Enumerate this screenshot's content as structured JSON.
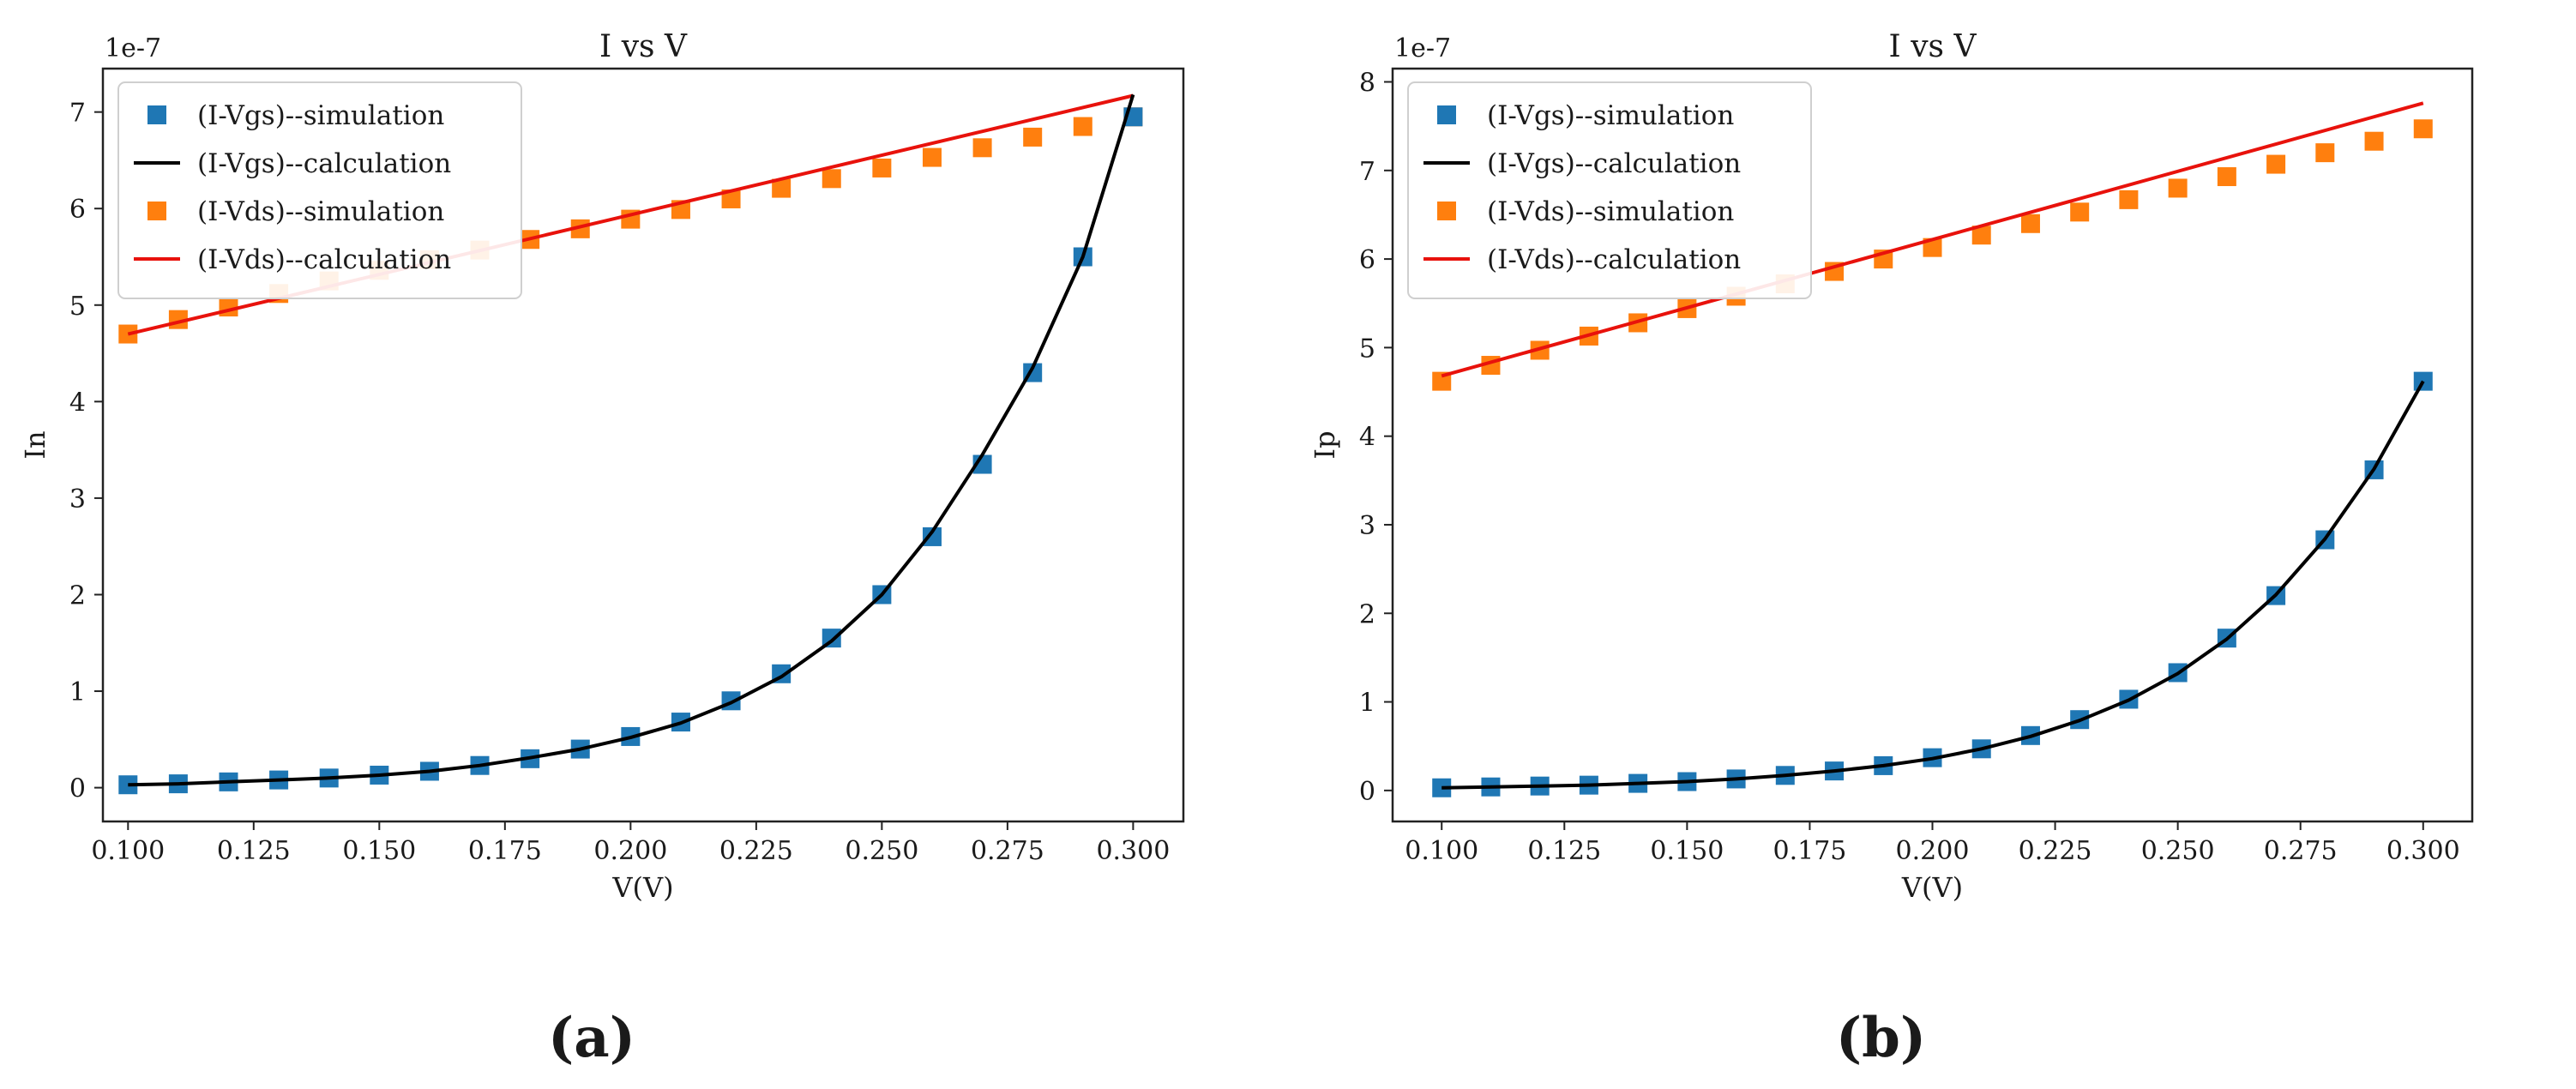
{
  "panels": [
    {
      "id": "a",
      "caption": "(a)",
      "colors": {
        "vgs_sim": "#1f77b4",
        "vgs_calc": "#000000",
        "vds_sim": "#ff7f0e",
        "vds_calc": "#e8120c"
      },
      "chart_data": {
        "type": "scatter",
        "title": "I vs V",
        "xlabel": "V(V)",
        "ylabel": "In",
        "y_offset_label": "1e-7",
        "xlim": [
          0.095,
          0.31
        ],
        "ylim": [
          -0.35,
          7.45
        ],
        "x_ticks": [
          0.1,
          0.125,
          0.15,
          0.175,
          0.2,
          0.225,
          0.25,
          0.275,
          0.3
        ],
        "x_tick_labels": [
          "0.100",
          "0.125",
          "0.150",
          "0.175",
          "0.200",
          "0.225",
          "0.250",
          "0.275",
          "0.300"
        ],
        "y_ticks": [
          0,
          1,
          2,
          3,
          4,
          5,
          6,
          7
        ],
        "y_tick_labels": [
          "0",
          "1",
          "2",
          "3",
          "4",
          "5",
          "6",
          "7"
        ],
        "legend_position": "top-left",
        "grid": false,
        "series": [
          {
            "name": "(I-Vgs)--simulation",
            "kind": "scatter",
            "color": "#1f77b4",
            "x": [
              0.1,
              0.11,
              0.12,
              0.13,
              0.14,
              0.15,
              0.16,
              0.17,
              0.18,
              0.19,
              0.2,
              0.21,
              0.22,
              0.23,
              0.24,
              0.25,
              0.26,
              0.27,
              0.28,
              0.29,
              0.3
            ],
            "y": [
              0.03,
              0.04,
              0.06,
              0.08,
              0.1,
              0.13,
              0.17,
              0.23,
              0.3,
              0.4,
              0.53,
              0.68,
              0.9,
              1.18,
              1.55,
              2.0,
              2.6,
              3.35,
              4.3,
              5.5,
              6.95
            ]
          },
          {
            "name": "(I-Vgs)--calculation",
            "kind": "line",
            "color": "#000000",
            "x": [
              0.1,
              0.11,
              0.12,
              0.13,
              0.14,
              0.15,
              0.16,
              0.17,
              0.18,
              0.19,
              0.2,
              0.21,
              0.22,
              0.23,
              0.24,
              0.25,
              0.26,
              0.27,
              0.28,
              0.29,
              0.3
            ],
            "y": [
              0.03,
              0.04,
              0.06,
              0.08,
              0.1,
              0.13,
              0.17,
              0.23,
              0.31,
              0.4,
              0.52,
              0.67,
              0.88,
              1.15,
              1.52,
              2.0,
              2.65,
              3.45,
              4.35,
              5.5,
              7.18
            ]
          },
          {
            "name": "(I-Vds)--simulation",
            "kind": "scatter",
            "color": "#ff7f0e",
            "x": [
              0.1,
              0.11,
              0.12,
              0.13,
              0.14,
              0.15,
              0.16,
              0.17,
              0.18,
              0.19,
              0.2,
              0.21,
              0.22,
              0.23,
              0.24,
              0.25,
              0.26,
              0.27,
              0.28,
              0.29,
              0.3
            ],
            "y": [
              4.7,
              4.85,
              4.98,
              5.12,
              5.25,
              5.36,
              5.47,
              5.57,
              5.68,
              5.79,
              5.89,
              5.99,
              6.1,
              6.21,
              6.31,
              6.42,
              6.53,
              6.63,
              6.74,
              6.85,
              6.95
            ]
          },
          {
            "name": "(I-Vds)--calculation",
            "kind": "line",
            "color": "#e8120c",
            "x": [
              0.1,
              0.3
            ],
            "y": [
              4.7,
              7.17
            ]
          }
        ]
      }
    },
    {
      "id": "b",
      "caption": "(b)",
      "colors": {
        "vgs_sim": "#1f77b4",
        "vgs_calc": "#000000",
        "vds_sim": "#ff7f0e",
        "vds_calc": "#e8120c"
      },
      "chart_data": {
        "type": "scatter",
        "title": "I vs V",
        "xlabel": "V(V)",
        "ylabel": "Ip",
        "y_offset_label": "1e-7",
        "xlim": [
          0.09,
          0.31
        ],
        "ylim": [
          -0.35,
          8.15
        ],
        "x_ticks": [
          0.1,
          0.125,
          0.15,
          0.175,
          0.2,
          0.225,
          0.25,
          0.275,
          0.3
        ],
        "x_tick_labels": [
          "0.100",
          "0.125",
          "0.150",
          "0.175",
          "0.200",
          "0.225",
          "0.250",
          "0.275",
          "0.300"
        ],
        "y_ticks": [
          0,
          1,
          2,
          3,
          4,
          5,
          6,
          7,
          8
        ],
        "y_tick_labels": [
          "0",
          "1",
          "2",
          "3",
          "4",
          "5",
          "6",
          "7",
          "8"
        ],
        "legend_position": "top-left",
        "grid": false,
        "series": [
          {
            "name": "(I-Vgs)--simulation",
            "kind": "scatter",
            "color": "#1f77b4",
            "x": [
              0.1,
              0.11,
              0.12,
              0.13,
              0.14,
              0.15,
              0.16,
              0.17,
              0.18,
              0.19,
              0.2,
              0.21,
              0.22,
              0.23,
              0.24,
              0.25,
              0.26,
              0.27,
              0.28,
              0.29,
              0.3
            ],
            "y": [
              0.03,
              0.04,
              0.05,
              0.06,
              0.08,
              0.1,
              0.13,
              0.17,
              0.22,
              0.28,
              0.37,
              0.47,
              0.62,
              0.8,
              1.03,
              1.33,
              1.72,
              2.2,
              2.83,
              3.62,
              4.62
            ]
          },
          {
            "name": "(I-Vgs)--calculation",
            "kind": "line",
            "color": "#000000",
            "x": [
              0.1,
              0.11,
              0.12,
              0.13,
              0.14,
              0.15,
              0.16,
              0.17,
              0.18,
              0.19,
              0.2,
              0.21,
              0.22,
              0.23,
              0.24,
              0.25,
              0.26,
              0.27,
              0.28,
              0.29,
              0.3
            ],
            "y": [
              0.03,
              0.04,
              0.05,
              0.06,
              0.08,
              0.1,
              0.13,
              0.17,
              0.22,
              0.28,
              0.36,
              0.47,
              0.61,
              0.79,
              1.02,
              1.32,
              1.71,
              2.21,
              2.84,
              3.63,
              4.62
            ]
          },
          {
            "name": "(I-Vds)--simulation",
            "kind": "scatter",
            "color": "#ff7f0e",
            "x": [
              0.1,
              0.11,
              0.12,
              0.13,
              0.14,
              0.15,
              0.16,
              0.17,
              0.18,
              0.19,
              0.2,
              0.21,
              0.22,
              0.23,
              0.24,
              0.25,
              0.26,
              0.27,
              0.28,
              0.29,
              0.3
            ],
            "y": [
              4.62,
              4.8,
              4.97,
              5.13,
              5.28,
              5.44,
              5.58,
              5.72,
              5.86,
              6.0,
              6.13,
              6.27,
              6.4,
              6.53,
              6.67,
              6.8,
              6.93,
              7.07,
              7.2,
              7.33,
              7.47
            ]
          },
          {
            "name": "(I-Vds)--calculation",
            "kind": "line",
            "color": "#e8120c",
            "x": [
              0.1,
              0.3
            ],
            "y": [
              4.68,
              7.76
            ]
          }
        ]
      }
    }
  ]
}
